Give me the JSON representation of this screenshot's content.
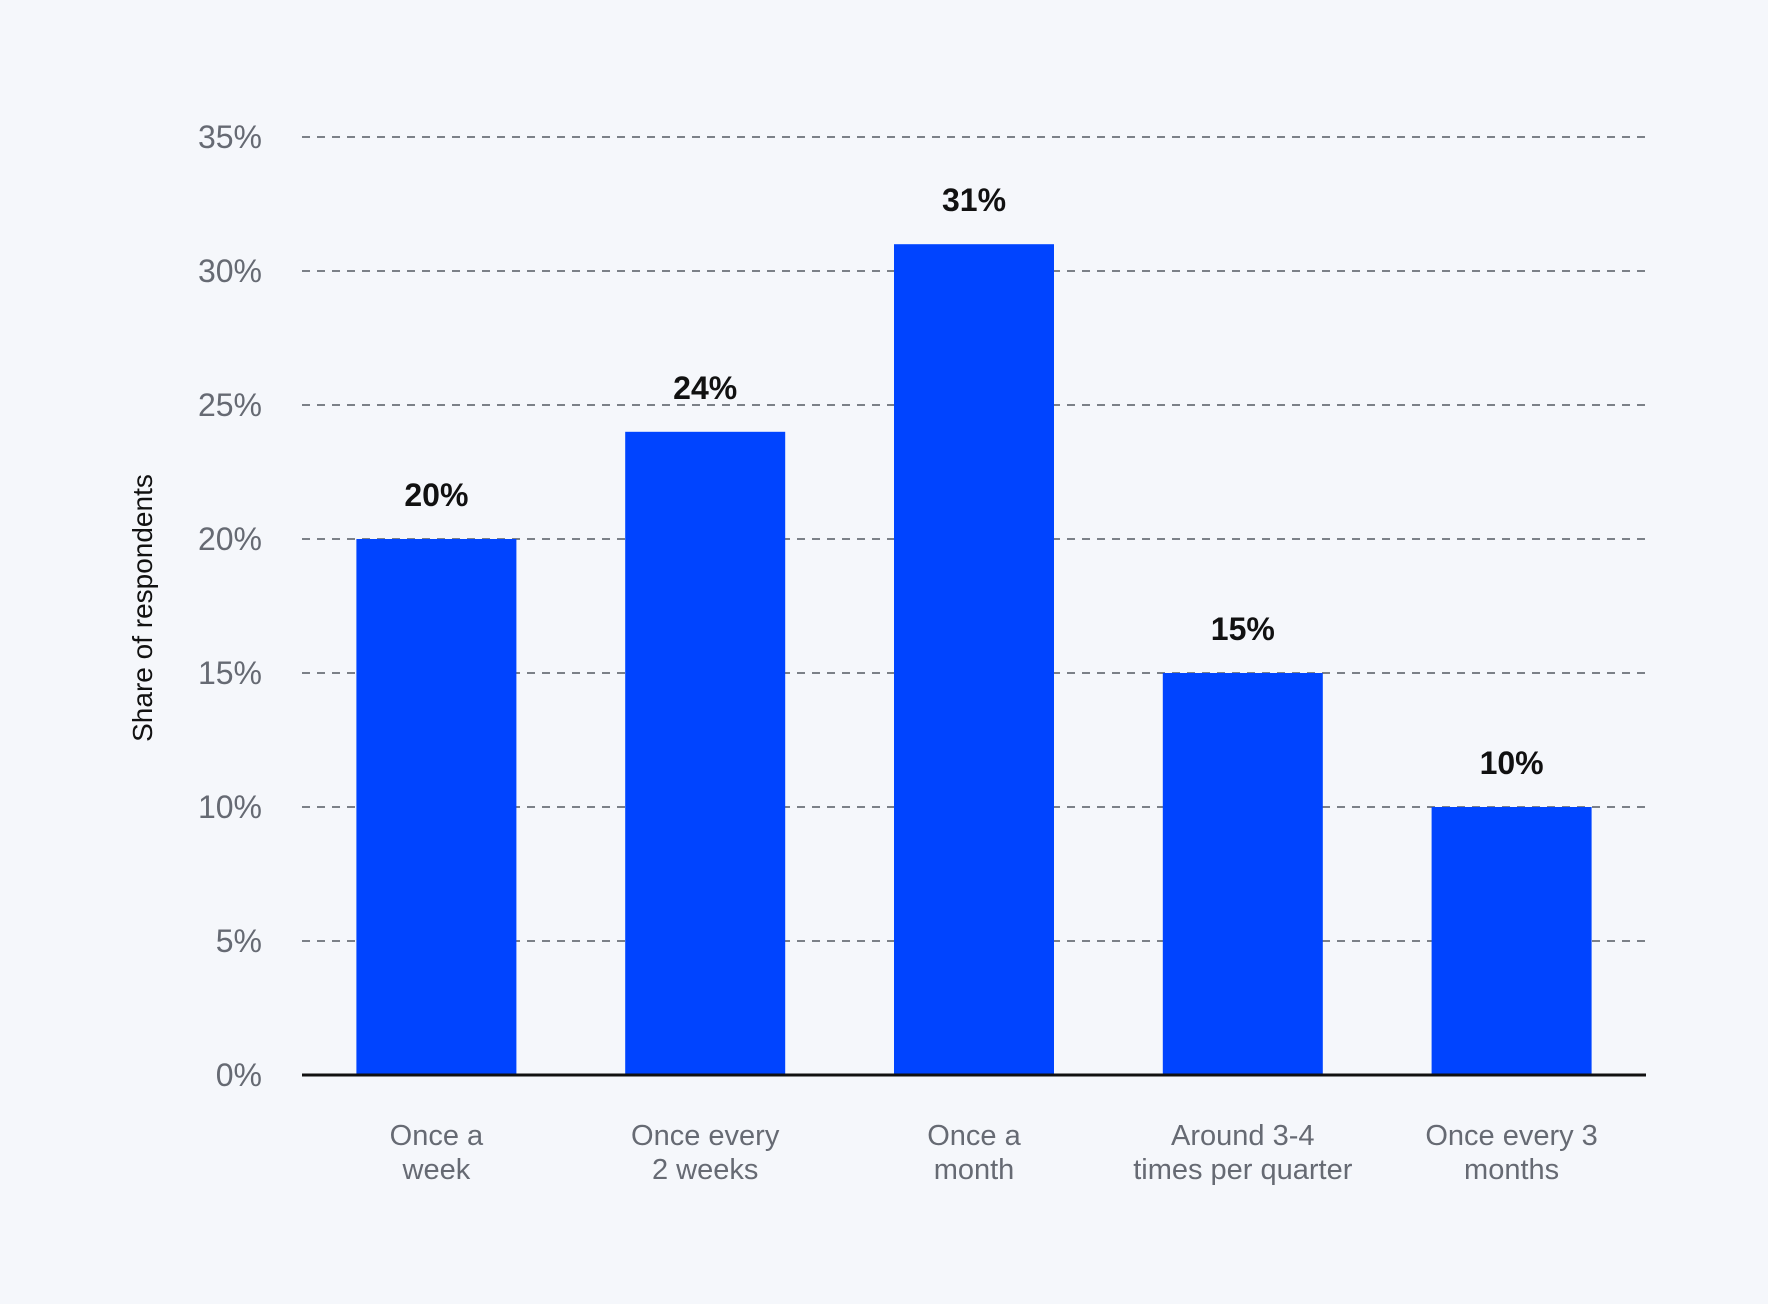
{
  "chart_data": {
    "type": "bar",
    "title": "",
    "xlabel": "",
    "ylabel": "Share of respondents",
    "categories": [
      [
        "Once a",
        "week"
      ],
      [
        "Once every",
        "2 weeks"
      ],
      [
        "Once a",
        "month"
      ],
      [
        "Around 3-4",
        "times per quarter"
      ],
      [
        "Once every 3",
        "months"
      ]
    ],
    "values": [
      20,
      24,
      31,
      15,
      10
    ],
    "value_labels": [
      "20%",
      "24%",
      "31%",
      "15%",
      "10%"
    ],
    "ylim": [
      0,
      35
    ],
    "yticks": [
      0,
      5,
      10,
      15,
      20,
      25,
      30,
      35
    ],
    "ytick_labels": [
      "0%",
      "5%",
      "10%",
      "15%",
      "20%",
      "25%",
      "30%",
      "35%"
    ],
    "grid": true,
    "legend": "none",
    "colors": {
      "bar": "#0044ff",
      "grid": "#555a63",
      "axis": "#111111",
      "background": "#f5f7fb"
    }
  }
}
